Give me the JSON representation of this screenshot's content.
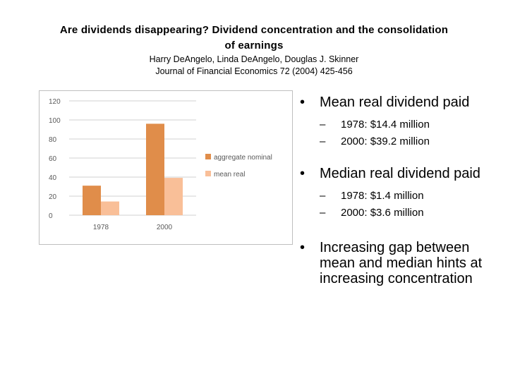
{
  "header": {
    "title": "Are dividends disappearing? Dividend concentration and the consolidation of earnings",
    "authors": "Harry DeAngelo, Linda DeAngelo, Douglas J. Skinner",
    "journal": "Journal of Financial Economics 72 (2004) 425-456"
  },
  "chart_data": {
    "type": "bar",
    "title": "",
    "xlabel": "",
    "ylabel": "",
    "categories": [
      "1978",
      "2000"
    ],
    "series": [
      {
        "name": "aggregate nominal",
        "values": [
          31,
          96
        ],
        "color": "#e08d4a"
      },
      {
        "name": "mean real",
        "values": [
          14.4,
          39.2
        ],
        "color": "#f9bf98"
      }
    ],
    "ylim": [
      0,
      120
    ],
    "yticks": [
      "0",
      "20",
      "40",
      "60",
      "80",
      "100",
      "120"
    ],
    "ytick_values": [
      0,
      20,
      40,
      60,
      80,
      100,
      120
    ],
    "grid": true,
    "legend_position": "right"
  },
  "bullets": {
    "b1": {
      "marker": "•",
      "text": "Mean real dividend paid",
      "subs": [
        {
          "marker": "–",
          "text": "1978:  $14.4 million"
        },
        {
          "marker": "–",
          "text": "2000:  $39.2 million"
        }
      ]
    },
    "b2": {
      "marker": "•",
      "text": "Median real dividend paid",
      "subs": [
        {
          "marker": "–",
          "text": "1978:  $1.4 million"
        },
        {
          "marker": "–",
          "text": "2000:  $3.6 million"
        }
      ]
    },
    "b3": {
      "marker": "•",
      "text": "Increasing gap between mean and median hints at increasing concentration"
    }
  }
}
